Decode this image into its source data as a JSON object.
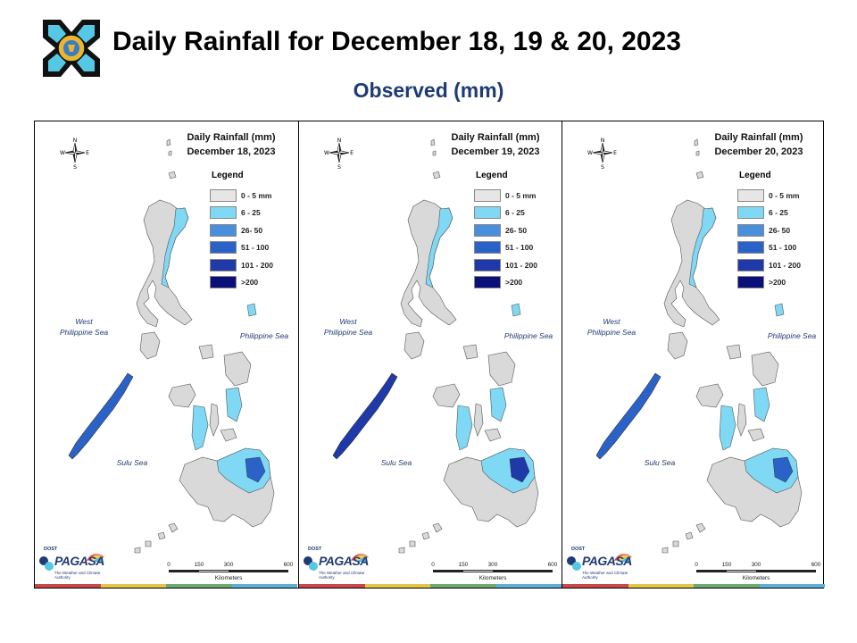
{
  "header": {
    "title": "Daily Rainfall for December 18, 19 & 20, 2023",
    "subtitle": "Observed (mm)"
  },
  "legend": {
    "heading": "Legend",
    "items": [
      {
        "label": "0 - 5 mm",
        "color": "#e6e6e6"
      },
      {
        "label": "6 - 25",
        "color": "#7fd9f5"
      },
      {
        "label": "26- 50",
        "color": "#4a8fdc"
      },
      {
        "label": "51 - 100",
        "color": "#2a62c8"
      },
      {
        "label": "101 - 200",
        "color": "#1f39a8"
      },
      {
        "label": ">200",
        "color": "#0b0f7a"
      }
    ]
  },
  "panels": [
    {
      "title_line1": "Daily Rainfall (mm)",
      "title_line2": "December 18, 2023",
      "dominant_rain_color": "#7fd9f5",
      "heavy_color": "#2a62c8"
    },
    {
      "title_line1": "Daily Rainfall (mm)",
      "title_line2": "December 19, 2023",
      "dominant_rain_color": "#7fd9f5",
      "heavy_color": "#1f39a8"
    },
    {
      "title_line1": "Daily Rainfall (mm)",
      "title_line2": "December 20, 2023",
      "dominant_rain_color": "#7fd9f5",
      "heavy_color": "#2a62c8"
    }
  ],
  "seas": {
    "west_line1": "West",
    "west_line2": "Philippine Sea",
    "east": "Philippine Sea",
    "sulu": "Sulu Sea"
  },
  "compass": {
    "n": "N",
    "s": "S",
    "e": "E",
    "w": "W"
  },
  "scale": {
    "ticks": [
      "0",
      "150",
      "300",
      "600"
    ],
    "unit": "Kilometers"
  },
  "brand": {
    "dost": "DOST",
    "name": "PAGASA",
    "tagline": "The Weather and Climate Authority"
  },
  "colors": {
    "land_gray": "#d9d9d9",
    "stripe": [
      "#c9474a",
      "#e6c44a",
      "#6bab72",
      "#5ab0d6"
    ]
  }
}
